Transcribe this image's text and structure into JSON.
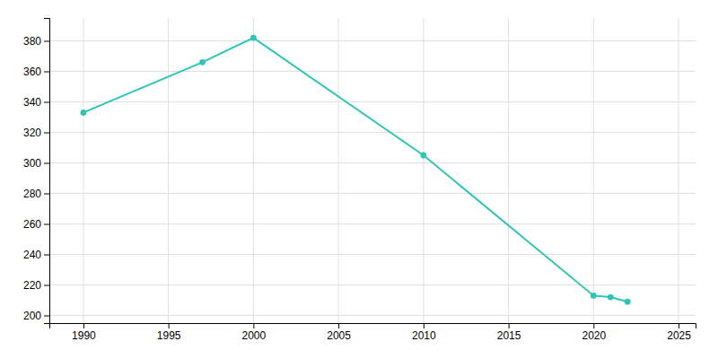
{
  "chart_data": {
    "type": "line",
    "x": [
      1990,
      1997,
      2000,
      2010,
      2020,
      2021,
      2022
    ],
    "values": [
      333,
      366,
      382,
      305,
      213,
      212,
      209
    ],
    "color": "#2ec4b6",
    "marker": "circle",
    "xlim": [
      1988,
      2026
    ],
    "ylim": [
      195,
      395
    ],
    "xticks": [
      1990,
      1995,
      2000,
      2005,
      2010,
      2015,
      2020,
      2025
    ],
    "yticks": [
      200,
      220,
      240,
      260,
      280,
      300,
      320,
      340,
      360,
      380
    ],
    "grid": true
  }
}
